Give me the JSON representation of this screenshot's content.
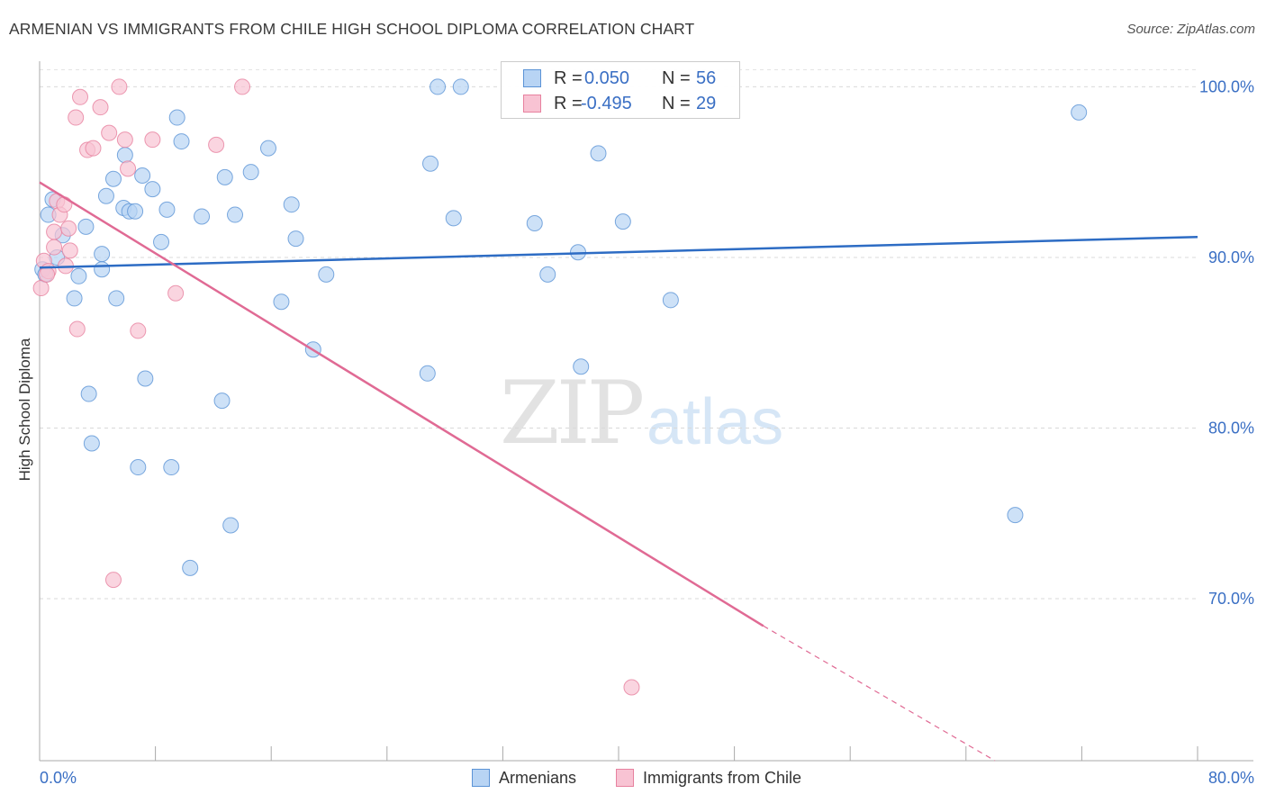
{
  "title": "ARMENIAN VS IMMIGRANTS FROM CHILE HIGH SCHOOL DIPLOMA CORRELATION CHART",
  "source": "Source: ZipAtlas.com",
  "watermark": {
    "zip": "ZIP",
    "atlas": "atlas"
  },
  "legend": {
    "r_label": "R =",
    "n_label": "N =",
    "rows": [
      {
        "r": "0.050",
        "n": "56",
        "fill": "#b8d4f4",
        "stroke": "#5b93d6"
      },
      {
        "r": "-0.495",
        "n": "29",
        "fill": "#f8c3d3",
        "stroke": "#e7819f"
      }
    ],
    "value_color": "#3a6fc4"
  },
  "bottom_legend": [
    {
      "label": "Armenians",
      "fill": "#b8d4f4",
      "stroke": "#5b93d6"
    },
    {
      "label": "Immigrants from Chile",
      "fill": "#f8c3d3",
      "stroke": "#e7819f"
    }
  ],
  "chart_data": {
    "type": "scatter",
    "title": "ARMENIAN VS IMMIGRANTS FROM CHILE HIGH SCHOOL DIPLOMA CORRELATION CHART",
    "xlabel": "",
    "ylabel": "High School Diploma",
    "xlim": [
      0,
      80
    ],
    "ylim": [
      60.5,
      101.5
    ],
    "x_tick_labels": [
      "0.0%",
      "80.0%"
    ],
    "y_ticks": [
      70,
      80,
      90,
      100
    ],
    "y_tick_labels": [
      "70.0%",
      "80.0%",
      "90.0%",
      "100.0%"
    ],
    "grid": true,
    "legend_position": "top-center",
    "series": [
      {
        "name": "Armenians",
        "color": "#5b93d6",
        "fill": "#b8d4f4",
        "points": [
          [
            0.2,
            89.3
          ],
          [
            0.4,
            89.0
          ],
          [
            0.6,
            92.5
          ],
          [
            0.9,
            93.4
          ],
          [
            1.2,
            90.0
          ],
          [
            1.6,
            91.3
          ],
          [
            2.4,
            87.6
          ],
          [
            2.7,
            88.9
          ],
          [
            3.2,
            91.8
          ],
          [
            3.4,
            82.0
          ],
          [
            3.6,
            79.1
          ],
          [
            4.3,
            89.3
          ],
          [
            4.3,
            90.2
          ],
          [
            4.6,
            93.6
          ],
          [
            5.1,
            94.6
          ],
          [
            5.3,
            87.6
          ],
          [
            5.8,
            92.9
          ],
          [
            5.9,
            96.0
          ],
          [
            6.2,
            92.7
          ],
          [
            6.6,
            92.7
          ],
          [
            6.8,
            77.7
          ],
          [
            7.1,
            94.8
          ],
          [
            7.3,
            82.9
          ],
          [
            7.8,
            94.0
          ],
          [
            8.4,
            90.9
          ],
          [
            8.8,
            92.8
          ],
          [
            9.1,
            77.7
          ],
          [
            9.5,
            98.2
          ],
          [
            9.8,
            96.8
          ],
          [
            10.4,
            71.8
          ],
          [
            11.2,
            92.4
          ],
          [
            12.6,
            81.6
          ],
          [
            12.8,
            94.7
          ],
          [
            13.2,
            74.3
          ],
          [
            13.5,
            92.5
          ],
          [
            14.6,
            95.0
          ],
          [
            15.8,
            96.4
          ],
          [
            16.7,
            87.4
          ],
          [
            17.4,
            93.1
          ],
          [
            17.7,
            91.1
          ],
          [
            18.9,
            84.6
          ],
          [
            19.8,
            89.0
          ],
          [
            26.8,
            83.2
          ],
          [
            27.0,
            95.5
          ],
          [
            27.5,
            100.0
          ],
          [
            28.6,
            92.3
          ],
          [
            29.1,
            100.0
          ],
          [
            34.2,
            92.0
          ],
          [
            35.1,
            89.0
          ],
          [
            37.2,
            90.3
          ],
          [
            37.4,
            83.6
          ],
          [
            38.6,
            96.1
          ],
          [
            40.3,
            92.1
          ],
          [
            43.6,
            87.5
          ],
          [
            67.4,
            74.9
          ],
          [
            71.8,
            98.5
          ]
        ]
      },
      {
        "name": "Immigrants from Chile",
        "color": "#e7819f",
        "fill": "#f8c3d3",
        "points": [
          [
            0.1,
            88.2
          ],
          [
            0.3,
            89.8
          ],
          [
            0.6,
            89.2
          ],
          [
            1.0,
            91.5
          ],
          [
            1.0,
            90.6
          ],
          [
            1.2,
            93.3
          ],
          [
            1.4,
            92.5
          ],
          [
            1.7,
            93.1
          ],
          [
            1.8,
            89.5
          ],
          [
            2.0,
            91.7
          ],
          [
            2.1,
            90.4
          ],
          [
            2.5,
            98.2
          ],
          [
            2.6,
            85.8
          ],
          [
            2.8,
            99.4
          ],
          [
            3.3,
            96.3
          ],
          [
            3.7,
            96.4
          ],
          [
            4.2,
            98.8
          ],
          [
            4.8,
            97.3
          ],
          [
            5.1,
            71.1
          ],
          [
            5.5,
            100.0
          ],
          [
            5.9,
            96.9
          ],
          [
            6.1,
            95.2
          ],
          [
            6.8,
            85.7
          ],
          [
            7.8,
            96.9
          ],
          [
            9.4,
            87.9
          ],
          [
            12.2,
            96.6
          ],
          [
            14.0,
            100.0
          ],
          [
            40.9,
            64.8
          ],
          [
            0.5,
            89.0
          ]
        ]
      }
    ],
    "trend_lines": [
      {
        "series": "Armenians",
        "x": [
          0,
          80
        ],
        "y": [
          89.4,
          91.2
        ]
      },
      {
        "series": "Immigrants from Chile",
        "x": [
          0,
          50
        ],
        "y": [
          94.4,
          68.4
        ],
        "dashed_to": [
          66,
          60.5
        ]
      }
    ]
  }
}
